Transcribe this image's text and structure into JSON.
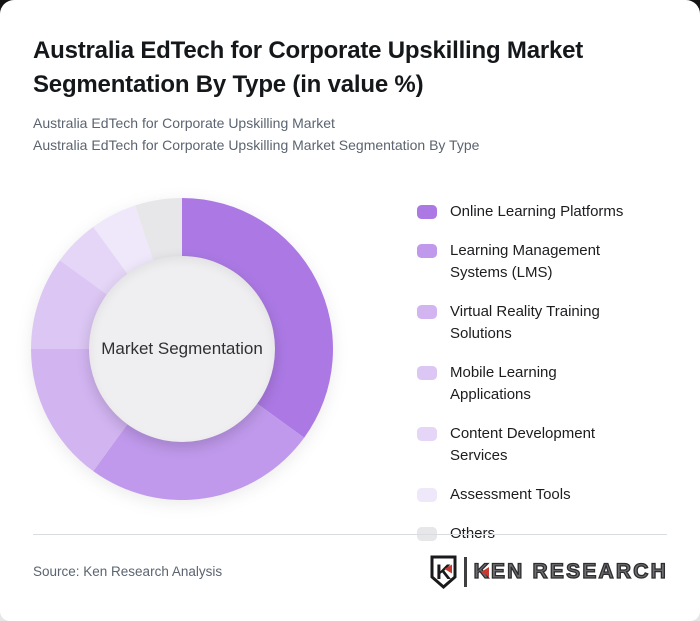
{
  "header": {
    "title_line1": "Australia EdTech for Corporate Upskilling Market",
    "title_line2": "Segmentation By Type (in value %)",
    "subtitle_line1": "Australia EdTech for Corporate Upskilling Market",
    "subtitle_line2": "Australia EdTech for Corporate Upskilling Market Segmentation By Type"
  },
  "chart_data": {
    "type": "pie",
    "variant": "donut",
    "title": "Australia EdTech for Corporate Upskilling Market Segmentation By Type (in value %)",
    "center_label": "Market Segmentation",
    "unit": "%",
    "start_angle_deg": 0,
    "direction": "clockwise",
    "legend_position": "right",
    "categories": [
      "Online Learning Platforms",
      "Learning Management Systems (LMS)",
      "Virtual Reality Training Solutions",
      "Mobile Learning Applications",
      "Content Development Services",
      "Assessment Tools",
      "Others"
    ],
    "values": [
      35,
      25,
      15,
      10,
      5,
      5,
      5
    ],
    "colors": [
      "#ac79e4",
      "#c099ec",
      "#d2b4f1",
      "#dcc6f4",
      "#e5d6f8",
      "#efe8fb",
      "#e7e6e9"
    ],
    "hole_color": "#efeef0"
  },
  "footer": {
    "source": "Source: Ken Research Analysis",
    "logo": {
      "monogram": "K",
      "text": "KEN RESEARCH",
      "accent_color": "#c9392f",
      "dark_color": "#2d2d2f"
    }
  }
}
